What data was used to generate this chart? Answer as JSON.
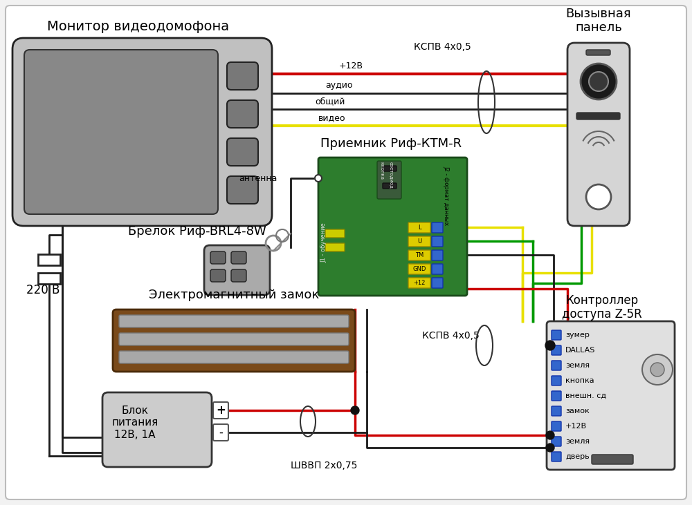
{
  "bg_color": "#f2f2f2",
  "text_monitor": "Монитор видеодомофона",
  "text_panel": "Вызывная\nпанель",
  "text_receiver": "Приемник Риф-КТМ-R",
  "text_fob": "Брелок Риф-BRL4-8W",
  "text_lock": "Электромагнитный замок",
  "text_psu": "Блок\nпитания\n12В, 1А",
  "text_controller": "Контроллер\nдоступа Z-5R",
  "text_220": "220 В",
  "text_kspv1": "КСПВ 4х0,5",
  "text_kspv2": "КСПВ 4х0,5",
  "text_shvvp": "ШВВП 2х0,75",
  "text_12v": "+12В",
  "text_audio": "аудио",
  "text_obshiy": "общий",
  "text_video": "видео",
  "text_antenna": "антенна",
  "text_j2": "J2 - формат данных",
  "text_j1": "J1 - обучение",
  "text_kn": "кнопка",
  "text_sv": "светодиод",
  "controller_labels": [
    "зумер",
    "DALLAS",
    "земля",
    "кнопка",
    "внешн. сд",
    "замок",
    "+12В",
    "земля",
    "дверь"
  ],
  "receiver_labels": [
    "L",
    "U",
    "TM",
    "GND",
    "+12"
  ],
  "wire_red": "#cc0000",
  "wire_black": "#1a1a1a",
  "wire_yellow": "#e8e000",
  "wire_green": "#009900",
  "connector_blue": "#3366cc",
  "pcb_green": "#2d7d2d",
  "pcb_green2": "#3a8a3a",
  "brown": "#7a4a1a",
  "monitor_body": "#c0c0c0",
  "monitor_screen": "#888888",
  "panel_body": "#d5d5d5",
  "psu_body": "#cccccc",
  "ctrl_body": "#e0e0e0"
}
